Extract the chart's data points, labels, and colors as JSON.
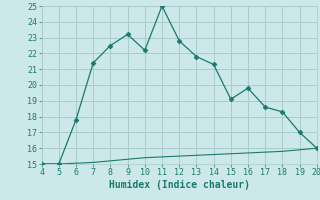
{
  "xlabel": "Humidex (Indice chaleur)",
  "x_main": [
    4,
    5,
    6,
    7,
    8,
    9,
    10,
    11,
    12,
    13,
    14,
    15,
    16,
    17,
    18,
    19,
    20
  ],
  "y_main": [
    15.0,
    15.0,
    17.8,
    21.4,
    22.5,
    23.2,
    22.2,
    25.0,
    22.8,
    21.8,
    21.3,
    19.1,
    19.8,
    18.6,
    18.3,
    17.0,
    16.0
  ],
  "x_flat": [
    4,
    5,
    6,
    7,
    8,
    9,
    10,
    11,
    12,
    13,
    14,
    15,
    16,
    17,
    18,
    19,
    20
  ],
  "y_flat": [
    15.0,
    15.0,
    15.05,
    15.1,
    15.2,
    15.3,
    15.4,
    15.45,
    15.5,
    15.55,
    15.6,
    15.65,
    15.7,
    15.75,
    15.8,
    15.9,
    16.0
  ],
  "line_color": "#1a7a6e",
  "bg_color": "#cce8e8",
  "grid_color": "#aacccc",
  "xlim": [
    4,
    20
  ],
  "ylim": [
    15,
    25
  ],
  "xticks": [
    4,
    5,
    6,
    7,
    8,
    9,
    10,
    11,
    12,
    13,
    14,
    15,
    16,
    17,
    18,
    19,
    20
  ],
  "yticks": [
    15,
    16,
    17,
    18,
    19,
    20,
    21,
    22,
    23,
    24,
    25
  ]
}
